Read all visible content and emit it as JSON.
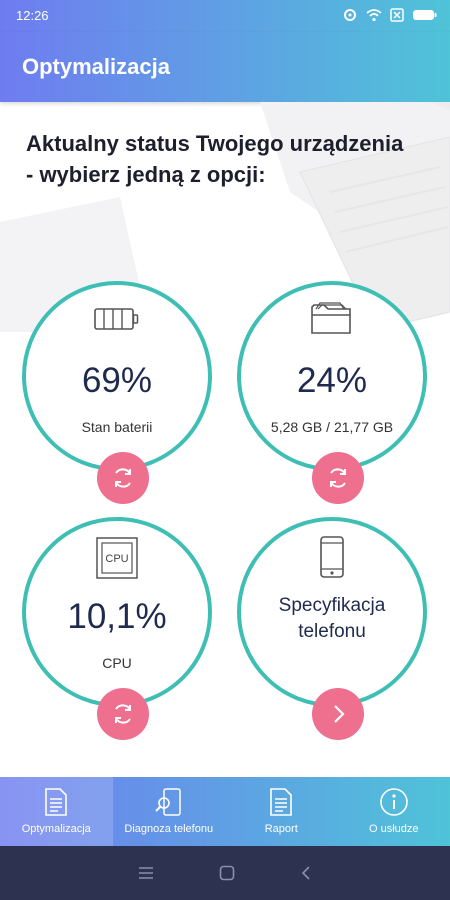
{
  "status_bar": {
    "time": "12:26"
  },
  "app_bar": {
    "title": "Optymalizacja"
  },
  "headline": "Aktualny status Twojego urządzenia - wybierz jedną z opcji:",
  "cards": {
    "battery": {
      "value": "69%",
      "label": "Stan baterii",
      "icon": "battery-icon",
      "level": 0.69
    },
    "storage": {
      "value": "24%",
      "label": "5,28 GB / 21,77 GB",
      "icon": "folder-icon"
    },
    "cpu": {
      "value": "10,1%",
      "label": "CPU",
      "icon_text": "CPU"
    },
    "spec": {
      "line1": "Specyfikacja",
      "line2": "telefonu",
      "icon": "phone-icon"
    }
  },
  "bottom_nav": [
    {
      "label": "Optymalizacja",
      "icon": "document-icon",
      "active": true
    },
    {
      "label": "Diagnoza telefonu",
      "icon": "phone-search-icon"
    },
    {
      "label": "Raport",
      "icon": "report-icon"
    },
    {
      "label": "O usłudze",
      "icon": "info-icon"
    }
  ],
  "colors": {
    "accent_gradient_start": "#6f7cf0",
    "accent_gradient_end": "#4fc3d8",
    "ring": "#3fbfb4",
    "action": "#ef6f8e",
    "value_text": "#1f2a4e"
  }
}
